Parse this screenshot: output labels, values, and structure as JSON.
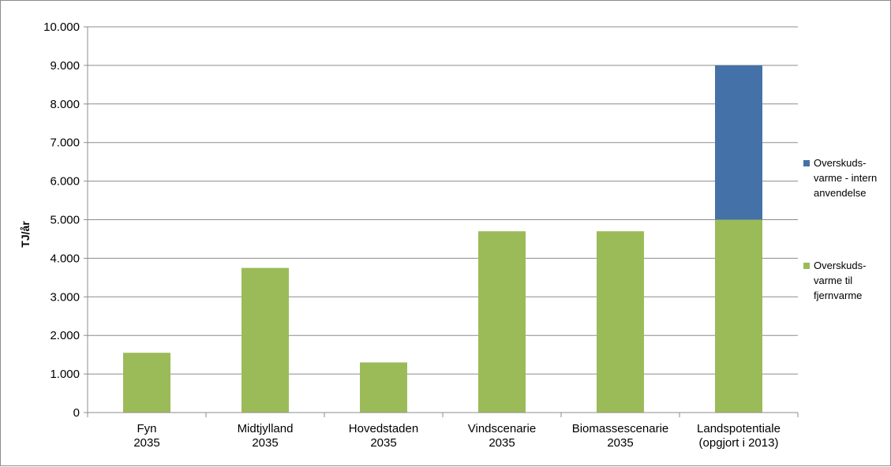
{
  "chart_data": {
    "type": "bar",
    "stacked": true,
    "title": "",
    "xlabel": "",
    "ylabel": "TJ/år",
    "ylim": [
      0,
      10000
    ],
    "yticks": [
      "0",
      "1.000",
      "2.000",
      "3.000",
      "4.000",
      "5.000",
      "6.000",
      "7.000",
      "8.000",
      "9.000",
      "10.000"
    ],
    "categories": [
      [
        "Fyn",
        "2035"
      ],
      [
        "Midtjylland",
        "2035"
      ],
      [
        "Hovedstaden",
        "2035"
      ],
      [
        "Vindscenarie",
        "2035"
      ],
      [
        "Biomassescenarie",
        "2035"
      ],
      [
        "Landspotentiale",
        "(opgjort i 2013)"
      ]
    ],
    "series": [
      {
        "name": "Overskuds-varme til fjernvarme",
        "legend_lines": [
          "Overskuds-",
          "varme til",
          "fjernvarme"
        ],
        "color": "#9BBB59",
        "values": [
          1550,
          3750,
          1300,
          4700,
          4700,
          5000
        ]
      },
      {
        "name": "Overskuds-varme - intern anvendelse",
        "legend_lines": [
          "Overskuds-",
          "varme - intern",
          "anvendelse"
        ],
        "color": "#4472A8",
        "values": [
          0,
          0,
          0,
          0,
          0,
          4000
        ]
      }
    ],
    "grid": true,
    "legend_position": "right"
  }
}
